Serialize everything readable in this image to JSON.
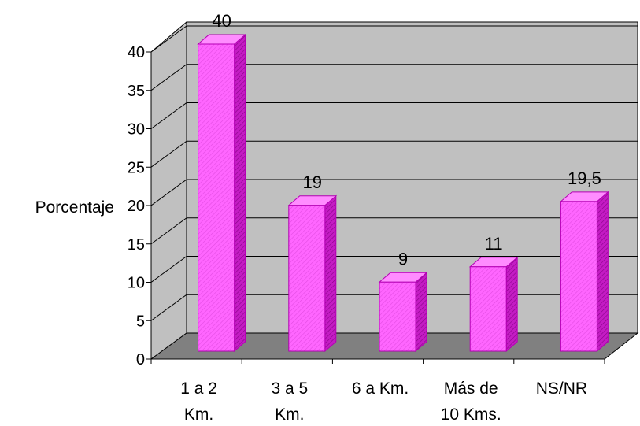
{
  "chart_data": {
    "type": "bar",
    "style": "3d",
    "title": "",
    "xlabel": "",
    "ylabel": "Porcentaje",
    "ylim": [
      0,
      40
    ],
    "yticks": [
      0,
      5,
      10,
      15,
      20,
      25,
      30,
      35,
      40
    ],
    "grid": true,
    "legend": "none",
    "categories": [
      [
        "1 a 2",
        "Km."
      ],
      [
        "3 a 5",
        "Km."
      ],
      [
        "6 a  Km."
      ],
      [
        "Más de",
        "10 Kms."
      ],
      [
        "NS/NR"
      ]
    ],
    "values": [
      40,
      19,
      9,
      11,
      19.5
    ],
    "data_labels": [
      "40",
      "19",
      "9",
      "11",
      "19,5"
    ],
    "colors": {
      "bar_face": "#ff66ff",
      "bar_side": "#b400b4",
      "bar_top": "#ff8cff",
      "wall": "#c0c0c0",
      "floor": "#808080",
      "gridline": "#000000"
    }
  }
}
